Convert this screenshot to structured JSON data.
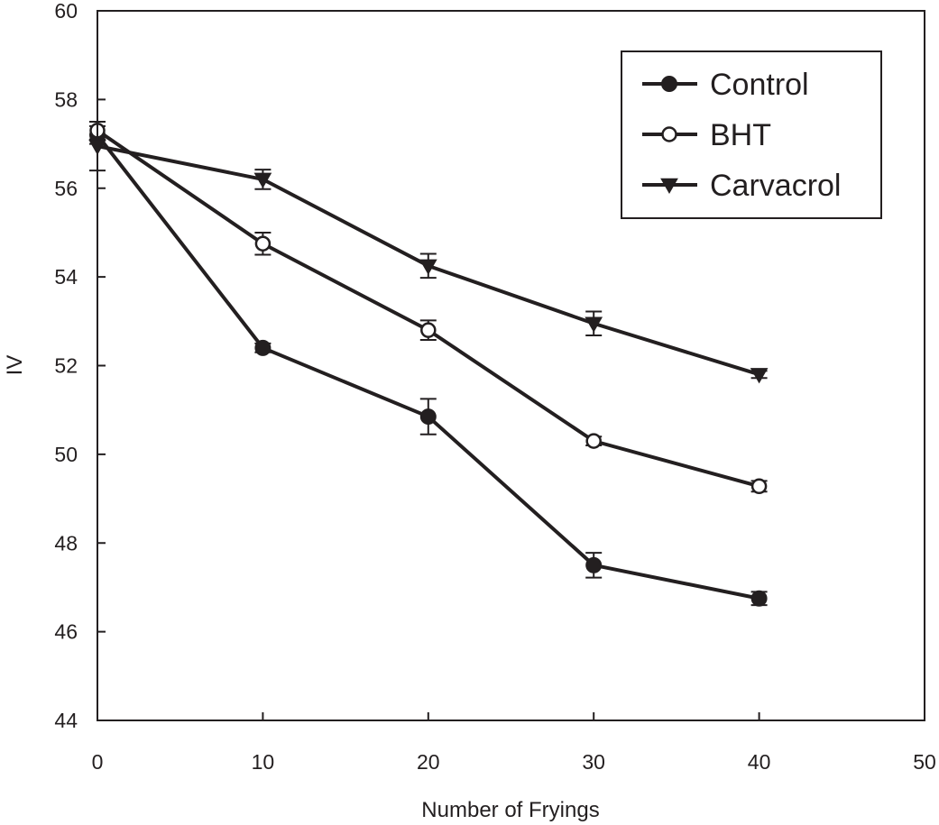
{
  "chart_data": {
    "type": "line",
    "title": "",
    "xlabel": "Number of Fryings",
    "ylabel": "IV",
    "xlim": [
      0,
      50
    ],
    "ylim": [
      44,
      60
    ],
    "xticks": [
      0,
      10,
      20,
      30,
      40,
      50
    ],
    "yticks": [
      44,
      46,
      48,
      50,
      52,
      54,
      56,
      58,
      60
    ],
    "x": [
      0,
      10,
      20,
      30,
      40
    ],
    "grid": false,
    "legend_position": "top-right",
    "series": [
      {
        "name": "Control",
        "marker": "filled-circle",
        "values": [
          57.2,
          52.4,
          50.85,
          47.5,
          46.75
        ],
        "errors": [
          0.2,
          0.1,
          0.4,
          0.28,
          0.15
        ]
      },
      {
        "name": "BHT",
        "marker": "open-circle",
        "values": [
          57.3,
          54.75,
          52.8,
          50.3,
          49.28
        ],
        "errors": [
          0.2,
          0.25,
          0.22,
          0.1,
          0.12
        ]
      },
      {
        "name": "Carvacrol",
        "marker": "filled-triangle-down",
        "values": [
          56.95,
          56.2,
          54.25,
          52.95,
          51.8
        ],
        "errors": [
          0.55,
          0.22,
          0.27,
          0.27,
          0.08
        ]
      }
    ],
    "colors": {
      "ink": "#231f20",
      "marker_fill_open": "#ffffff"
    }
  }
}
